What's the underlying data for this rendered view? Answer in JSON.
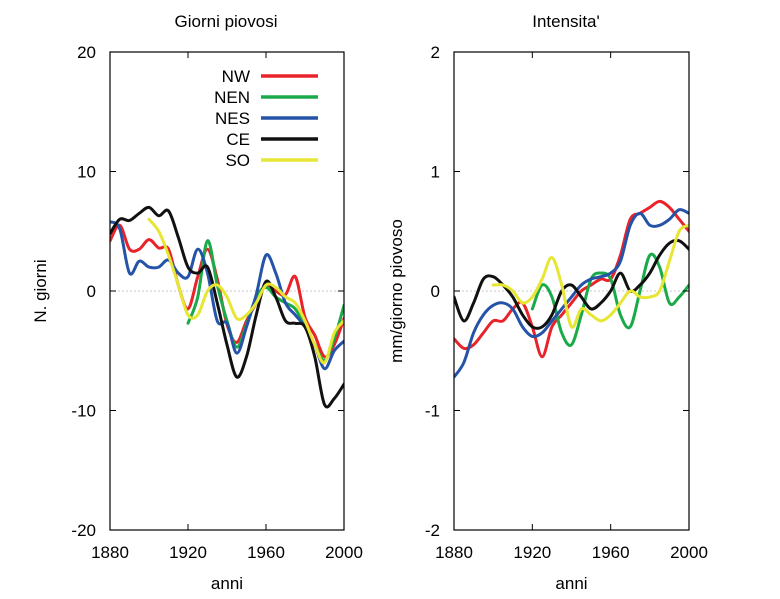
{
  "chart_data": [
    {
      "type": "line",
      "title": "Giorni piovosi",
      "xlabel": "anni",
      "ylabel": "N. giorni",
      "xlim": [
        1880,
        2000
      ],
      "ylim": [
        -20,
        20
      ],
      "xticks": [
        "1880",
        "1920",
        "1960",
        "2000"
      ],
      "yticks": [
        "20",
        "10",
        "0",
        "-10",
        "-20"
      ],
      "zero_line": true,
      "legend_position": "top-center",
      "series": [
        {
          "name": "NW",
          "color": "#e8232a",
          "x": [
            1880,
            1885,
            1890,
            1895,
            1900,
            1905,
            1910,
            1915,
            1920,
            1925,
            1930,
            1935,
            1940,
            1945,
            1950,
            1955,
            1960,
            1965,
            1970,
            1975,
            1980,
            1985,
            1990,
            1995,
            2000
          ],
          "y": [
            4.2,
            5.5,
            3.5,
            3.5,
            4.3,
            3.6,
            3.5,
            0.5,
            -1.5,
            1.2,
            3.5,
            1.0,
            -2.8,
            -4.3,
            -2.5,
            -1.0,
            0.5,
            0.0,
            -0.3,
            1.2,
            -2.2,
            -3.7,
            -5.5,
            -4.5,
            -2.3
          ]
        },
        {
          "name": "NEN",
          "color": "#1aaa4a",
          "x": [
            1920,
            1925,
            1930,
            1935,
            1940,
            1945,
            1950,
            1955,
            1960,
            1965,
            1970,
            1975,
            1980,
            1985,
            1990,
            1995,
            2000
          ],
          "y": [
            -2.7,
            -0.5,
            4.2,
            0.5,
            -2.5,
            -4.7,
            -2.8,
            -0.5,
            0.3,
            -0.5,
            -1.0,
            -1.5,
            -3.0,
            -4.5,
            -5.8,
            -4.0,
            -1.2
          ]
        },
        {
          "name": "NES",
          "color": "#2453a8",
          "x": [
            1880,
            1885,
            1890,
            1895,
            1900,
            1905,
            1910,
            1915,
            1920,
            1925,
            1930,
            1935,
            1940,
            1945,
            1950,
            1955,
            1960,
            1965,
            1970,
            1975,
            1980,
            1985,
            1990,
            1995,
            2000
          ],
          "y": [
            5.8,
            5.2,
            1.5,
            2.5,
            2.0,
            2.0,
            2.6,
            1.5,
            1.2,
            3.5,
            1.5,
            -2.5,
            -2.7,
            -5.2,
            -3.0,
            -0.3,
            3.0,
            1.5,
            -1.0,
            -2.0,
            -3.0,
            -4.5,
            -6.5,
            -5.0,
            -4.2
          ]
        },
        {
          "name": "CE",
          "color": "#111111",
          "x": [
            1880,
            1885,
            1890,
            1895,
            1900,
            1905,
            1910,
            1915,
            1920,
            1925,
            1930,
            1935,
            1940,
            1945,
            1950,
            1955,
            1960,
            1965,
            1970,
            1975,
            1980,
            1985,
            1990,
            1995,
            2000
          ],
          "y": [
            4.8,
            6.0,
            5.9,
            6.5,
            7.0,
            6.3,
            6.7,
            4.5,
            2.0,
            1.5,
            2.0,
            -1.0,
            -4.5,
            -7.2,
            -5.5,
            -2.0,
            0.8,
            -0.5,
            -2.5,
            -2.7,
            -3.0,
            -5.5,
            -9.5,
            -9.0,
            -7.8
          ]
        },
        {
          "name": "SO",
          "color": "#e6e633",
          "x": [
            1900,
            1905,
            1910,
            1915,
            1920,
            1925,
            1930,
            1935,
            1940,
            1945,
            1950,
            1955,
            1960,
            1965,
            1970,
            1975,
            1980,
            1985,
            1990,
            1995,
            2000
          ],
          "y": [
            6.0,
            5.0,
            3.0,
            0.5,
            -2.0,
            -2.0,
            0.0,
            0.5,
            -0.5,
            -2.3,
            -2.0,
            -1.0,
            0.5,
            0.3,
            -0.5,
            -1.0,
            -2.5,
            -4.5,
            -6.0,
            -3.5,
            -2.5
          ]
        }
      ]
    },
    {
      "type": "line",
      "title": "Intensita'",
      "xlabel": "anni",
      "ylabel": "mm/giorno piovoso",
      "xlim": [
        1880,
        2000
      ],
      "ylim": [
        -2,
        2
      ],
      "xticks": [
        "1880",
        "1920",
        "1960",
        "2000"
      ],
      "yticks": [
        "2",
        "1",
        "0",
        "-1",
        "-2"
      ],
      "zero_line": true,
      "series": [
        {
          "name": "NW",
          "color": "#e8232a",
          "x": [
            1880,
            1885,
            1890,
            1895,
            1900,
            1905,
            1910,
            1915,
            1920,
            1925,
            1930,
            1935,
            1940,
            1945,
            1950,
            1955,
            1960,
            1965,
            1970,
            1975,
            1980,
            1985,
            1990,
            1995,
            2000
          ],
          "y": [
            -0.4,
            -0.48,
            -0.45,
            -0.35,
            -0.25,
            -0.25,
            -0.15,
            -0.1,
            -0.3,
            -0.55,
            -0.3,
            -0.2,
            -0.1,
            0.0,
            0.05,
            0.1,
            0.1,
            0.3,
            0.6,
            0.65,
            0.7,
            0.75,
            0.7,
            0.6,
            0.5
          ]
        },
        {
          "name": "NEN",
          "color": "#1aaa4a",
          "x": [
            1920,
            1925,
            1930,
            1935,
            1940,
            1945,
            1950,
            1955,
            1960,
            1965,
            1970,
            1975,
            1980,
            1985,
            1990,
            1995,
            2000
          ],
          "y": [
            -0.15,
            0.05,
            -0.05,
            -0.35,
            -0.45,
            -0.2,
            0.1,
            0.15,
            0.1,
            -0.2,
            -0.3,
            0.0,
            0.3,
            0.2,
            -0.1,
            -0.05,
            0.05
          ]
        },
        {
          "name": "NES",
          "color": "#2453a8",
          "x": [
            1880,
            1885,
            1890,
            1895,
            1900,
            1905,
            1910,
            1915,
            1920,
            1925,
            1930,
            1935,
            1940,
            1945,
            1950,
            1955,
            1960,
            1965,
            1970,
            1975,
            1980,
            1985,
            1990,
            1995,
            2000
          ],
          "y": [
            -0.72,
            -0.6,
            -0.35,
            -0.2,
            -0.12,
            -0.1,
            -0.15,
            -0.3,
            -0.38,
            -0.35,
            -0.25,
            -0.15,
            -0.05,
            0.05,
            0.1,
            0.12,
            0.15,
            0.25,
            0.55,
            0.65,
            0.55,
            0.55,
            0.6,
            0.68,
            0.65
          ]
        },
        {
          "name": "CE",
          "color": "#111111",
          "x": [
            1880,
            1885,
            1890,
            1895,
            1900,
            1905,
            1910,
            1915,
            1920,
            1925,
            1930,
            1935,
            1940,
            1945,
            1950,
            1955,
            1960,
            1965,
            1970,
            1975,
            1980,
            1985,
            1990,
            1995,
            2000
          ],
          "y": [
            -0.05,
            -0.25,
            -0.1,
            0.1,
            0.12,
            0.05,
            -0.05,
            -0.2,
            -0.3,
            -0.3,
            -0.2,
            0.0,
            0.05,
            -0.05,
            -0.15,
            -0.1,
            0.0,
            0.15,
            0.0,
            0.05,
            0.15,
            0.3,
            0.4,
            0.42,
            0.35
          ]
        },
        {
          "name": "SO",
          "color": "#e6e633",
          "x": [
            1900,
            1905,
            1910,
            1915,
            1920,
            1925,
            1930,
            1935,
            1940,
            1945,
            1950,
            1955,
            1960,
            1965,
            1970,
            1975,
            1980,
            1985,
            1990,
            1995,
            2000
          ],
          "y": [
            0.05,
            0.05,
            0.0,
            -0.1,
            -0.05,
            0.1,
            0.28,
            0.05,
            -0.3,
            -0.15,
            -0.2,
            -0.25,
            -0.2,
            -0.1,
            0.0,
            -0.05,
            -0.05,
            0.0,
            0.25,
            0.5,
            0.55
          ]
        }
      ]
    }
  ]
}
